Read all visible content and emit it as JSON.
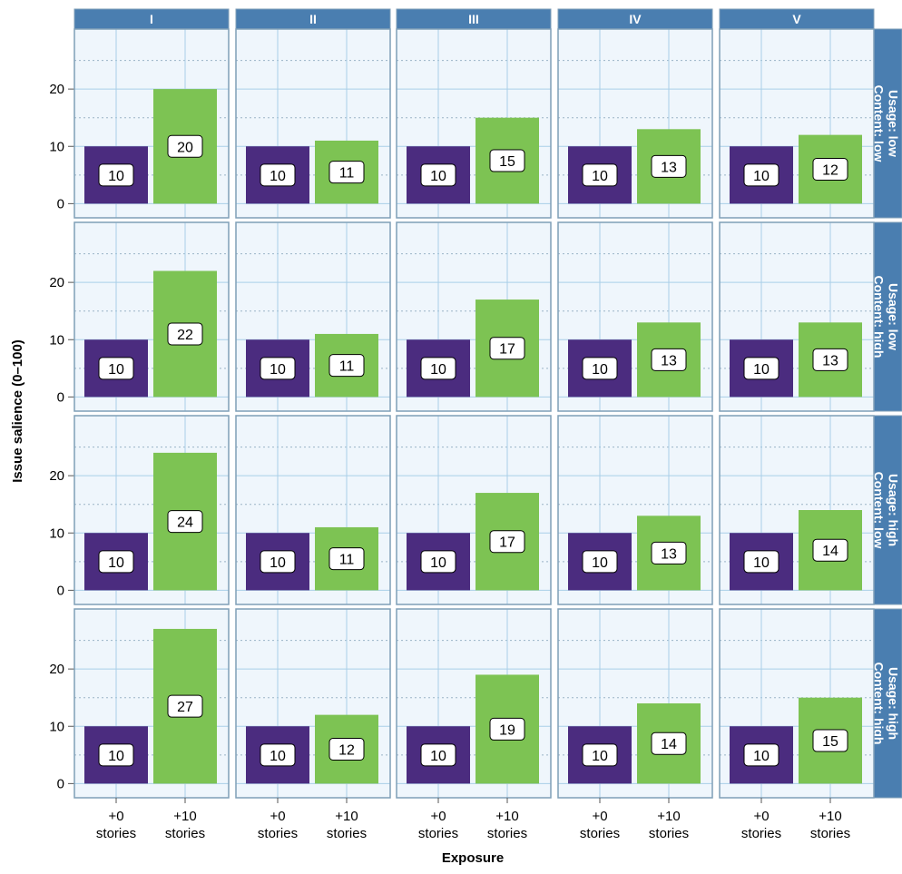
{
  "chart_data": {
    "type": "bar",
    "title": "",
    "xlabel": "Exposure",
    "ylabel": "Issue salience (0–100)",
    "ylim": [
      -2,
      30
    ],
    "yticks": [
      0,
      10,
      20
    ],
    "grid": true,
    "legend": "none",
    "categories": [
      "+0\nstories",
      "+10\nstories"
    ],
    "category_lines": [
      [
        "+0",
        "stories"
      ],
      [
        "+10",
        "stories"
      ]
    ],
    "columns": [
      "I",
      "II",
      "III",
      "IV",
      "V"
    ],
    "rows": [
      {
        "label_lines": [
          "Usage: low",
          "Content: low"
        ],
        "values": [
          [
            10,
            20
          ],
          [
            10,
            11
          ],
          [
            10,
            15
          ],
          [
            10,
            13
          ],
          [
            10,
            12
          ]
        ]
      },
      {
        "label_lines": [
          "Usage: low",
          "Content: high"
        ],
        "values": [
          [
            10,
            22
          ],
          [
            10,
            11
          ],
          [
            10,
            17
          ],
          [
            10,
            13
          ],
          [
            10,
            13
          ]
        ]
      },
      {
        "label_lines": [
          "Usage: high",
          "Content: low"
        ],
        "values": [
          [
            10,
            24
          ],
          [
            10,
            11
          ],
          [
            10,
            17
          ],
          [
            10,
            13
          ],
          [
            10,
            14
          ]
        ]
      },
      {
        "label_lines": [
          "Usage: high",
          "Content: high"
        ],
        "values": [
          [
            10,
            27
          ],
          [
            10,
            12
          ],
          [
            10,
            19
          ],
          [
            10,
            14
          ],
          [
            10,
            15
          ]
        ]
      }
    ]
  },
  "colors": {
    "bar_base": "#4b2c7f",
    "bar_treat": "#7dc353",
    "panel_bg": "#eff6fc",
    "panel_border": "#7f9fb7",
    "strip_bg": "#4a7eb0",
    "grid_major": "#a9cfe8",
    "grid_minor": "#9bb4c6"
  }
}
